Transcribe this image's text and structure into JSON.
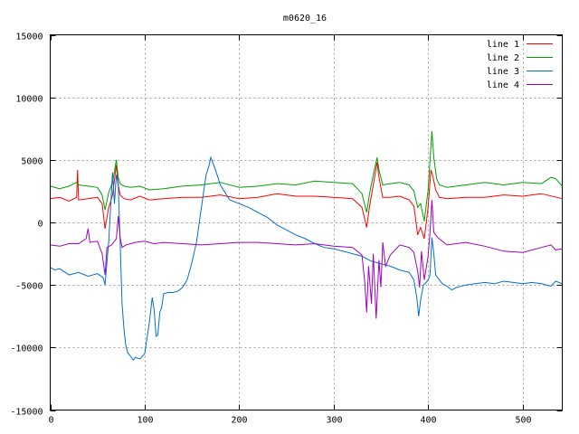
{
  "chart_data": {
    "type": "line",
    "title": "m0620_16",
    "xlabel": "",
    "ylabel": "",
    "xlim": [
      0,
      542
    ],
    "ylim": [
      -15000,
      15000
    ],
    "xticks": [
      0,
      100,
      200,
      300,
      400,
      500
    ],
    "yticks": [
      -15000,
      -10000,
      -5000,
      0,
      5000,
      10000,
      15000
    ],
    "grid": true,
    "legend_position": "top-right",
    "series": [
      {
        "name": "line 1",
        "color": "#ff0000",
        "x": [
          0,
          10,
          20,
          28,
          29,
          30,
          40,
          50,
          55,
          58,
          62,
          66,
          70,
          72,
          74,
          78,
          85,
          95,
          105,
          120,
          140,
          160,
          180,
          200,
          220,
          240,
          260,
          280,
          300,
          320,
          330,
          335,
          338,
          342,
          346,
          348,
          352,
          360,
          370,
          380,
          385,
          389,
          392,
          396,
          400,
          403,
          405,
          408,
          412,
          420,
          440,
          460,
          480,
          500,
          520,
          542
        ],
        "y": [
          1900,
          2000,
          1700,
          2000,
          4200,
          1800,
          1900,
          2000,
          1500,
          -500,
          1200,
          2200,
          4600,
          3000,
          2200,
          1900,
          1800,
          2100,
          1800,
          1900,
          2000,
          2000,
          2200,
          1900,
          2000,
          2300,
          2100,
          2100,
          2000,
          1900,
          1200,
          -400,
          1300,
          3000,
          4800,
          3600,
          2000,
          2000,
          2100,
          1800,
          1300,
          -1000,
          -400,
          -1300,
          1200,
          4200,
          3700,
          2600,
          2000,
          1900,
          2000,
          2000,
          2200,
          2100,
          2300,
          1900
        ]
      },
      {
        "name": "line 2",
        "color": "#00a000",
        "x": [
          0,
          10,
          20,
          28,
          30,
          40,
          50,
          55,
          58,
          62,
          66,
          70,
          72,
          74,
          78,
          85,
          95,
          105,
          120,
          140,
          160,
          180,
          200,
          220,
          240,
          260,
          280,
          300,
          320,
          330,
          335,
          338,
          342,
          346,
          348,
          352,
          360,
          370,
          380,
          385,
          389,
          392,
          396,
          400,
          404,
          406,
          409,
          412,
          420,
          440,
          460,
          480,
          500,
          520,
          530,
          535,
          542
        ],
        "y": [
          2900,
          2700,
          2900,
          3200,
          3000,
          2900,
          2800,
          2200,
          1000,
          2400,
          3200,
          5000,
          3600,
          3100,
          2900,
          2800,
          2900,
          2600,
          2700,
          2900,
          3000,
          3200,
          2800,
          2900,
          3100,
          3000,
          3300,
          3200,
          3100,
          2300,
          800,
          2300,
          3800,
          5200,
          4200,
          3000,
          3100,
          3200,
          3000,
          2500,
          1200,
          1500,
          100,
          2600,
          7300,
          5200,
          3500,
          3000,
          2800,
          3000,
          3200,
          3000,
          3200,
          3100,
          3600,
          3500,
          2900
        ]
      },
      {
        "name": "line 3",
        "color": "#0070d0",
        "x": [
          0,
          5,
          10,
          20,
          30,
          40,
          50,
          56,
          58,
          62,
          66,
          68,
          70,
          72,
          74,
          76,
          78,
          80,
          82,
          85,
          88,
          90,
          95,
          100,
          105,
          108,
          110,
          112,
          114,
          116,
          118,
          120,
          125,
          130,
          135,
          140,
          145,
          150,
          155,
          160,
          165,
          168,
          170,
          175,
          180,
          185,
          190,
          200,
          210,
          220,
          230,
          240,
          250,
          260,
          270,
          280,
          290,
          300,
          310,
          320,
          330,
          340,
          350,
          360,
          370,
          380,
          385,
          388,
          390,
          392,
          395,
          398,
          400,
          402,
          404,
          406,
          408,
          412,
          415,
          420,
          425,
          430,
          440,
          450,
          460,
          470,
          480,
          490,
          500,
          510,
          520,
          530,
          535,
          542
        ],
        "y": [
          -3600,
          -3800,
          -3700,
          -4200,
          -4000,
          -4300,
          -4100,
          -4400,
          -5000,
          -1500,
          4000,
          1500,
          3800,
          3000,
          -1500,
          -6500,
          -8500,
          -9800,
          -10400,
          -10700,
          -11000,
          -10800,
          -10900,
          -10500,
          -8000,
          -6000,
          -7000,
          -9100,
          -9000,
          -7200,
          -6800,
          -5700,
          -5600,
          -5600,
          -5500,
          -5200,
          -4600,
          -3200,
          -1500,
          1200,
          3800,
          4500,
          5200,
          4200,
          3000,
          2400,
          1800,
          1500,
          1200,
          800,
          400,
          -200,
          -600,
          -1000,
          -1300,
          -1700,
          -2000,
          -2100,
          -2300,
          -2500,
          -2700,
          -3100,
          -3300,
          -3500,
          -3800,
          -4000,
          -4600,
          -6000,
          -7500,
          -6200,
          -5000,
          -4800,
          -4600,
          -4200,
          -1200,
          -2500,
          -4200,
          -4600,
          -4900,
          -5100,
          -5400,
          -5200,
          -5000,
          -4900,
          -4800,
          -4900,
          -4700,
          -4800,
          -4900,
          -4800,
          -4900,
          -5100,
          -4700,
          -4900
        ]
      },
      {
        "name": "line 4",
        "color": "#a000c0",
        "x": [
          0,
          10,
          20,
          30,
          38,
          40,
          42,
          50,
          55,
          58,
          60,
          65,
          70,
          72,
          74,
          76,
          80,
          90,
          100,
          110,
          120,
          140,
          160,
          180,
          200,
          220,
          240,
          260,
          280,
          300,
          320,
          330,
          333,
          335,
          337,
          340,
          342,
          345,
          348,
          350,
          352,
          355,
          360,
          370,
          380,
          385,
          389,
          391,
          393,
          396,
          400,
          402,
          404,
          406,
          410,
          420,
          440,
          460,
          480,
          500,
          520,
          530,
          535,
          542
        ],
        "y": [
          -1800,
          -1900,
          -1700,
          -1700,
          -1300,
          -500,
          -1600,
          -1500,
          -2500,
          -4200,
          -2000,
          -1800,
          -1300,
          500,
          -1200,
          -2000,
          -1800,
          -1600,
          -1500,
          -1700,
          -1600,
          -1700,
          -1800,
          -1700,
          -1600,
          -1600,
          -1700,
          -1800,
          -1700,
          -1900,
          -2000,
          -2600,
          -4800,
          -7200,
          -3500,
          -6500,
          -2500,
          -7700,
          -3000,
          -5200,
          -1600,
          -3500,
          -2600,
          -1800,
          -2000,
          -2400,
          -3900,
          -5200,
          -2300,
          -4600,
          -2700,
          -800,
          1800,
          -800,
          -1200,
          -1800,
          -1600,
          -1900,
          -2300,
          -2400,
          -2000,
          -1800,
          -2200,
          -2100
        ]
      }
    ]
  }
}
